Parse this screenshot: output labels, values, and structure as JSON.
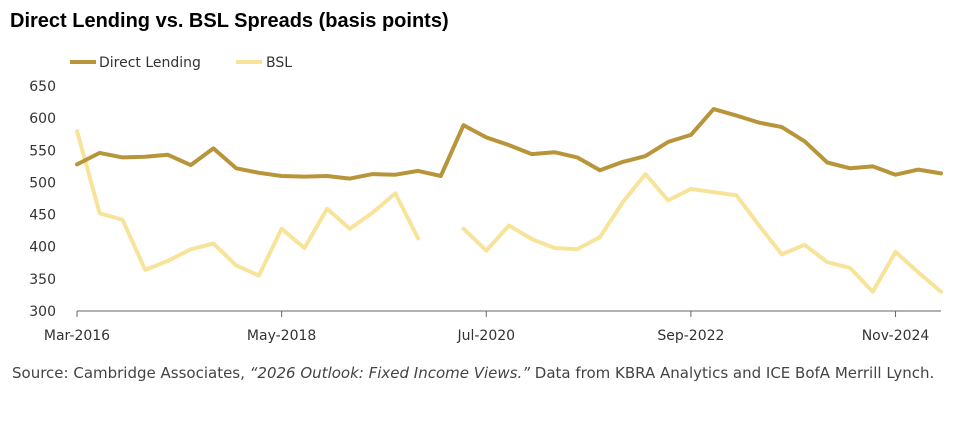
{
  "title": "Direct Lending vs. BSL Spreads (basis points)",
  "source": {
    "prefix": "Source: Cambridge Associates, ",
    "publication": "“2026 Outlook: Fixed Income Views.”",
    "suffix": " Data from KBRA Analytics and ICE BofA Merrill Lynch."
  },
  "colors": {
    "direct_lending": "#B8943A",
    "bsl": "#F7E49A",
    "axis": "#666666"
  },
  "chart_data": {
    "type": "line",
    "title": "Direct Lending vs. BSL Spreads (basis points)",
    "xlabel": "",
    "ylabel": "",
    "ylim": [
      300,
      650
    ],
    "yticks": [
      300,
      350,
      400,
      450,
      500,
      550,
      600,
      650
    ],
    "x_tick_labels": [
      {
        "label": "Mar-2016",
        "index": 0
      },
      {
        "label": "May-2018",
        "index": 9
      },
      {
        "label": "Jul-2020",
        "index": 18
      },
      {
        "label": "Sep-2022",
        "index": 27
      },
      {
        "label": "Nov-2024",
        "index": 36
      }
    ],
    "x": [
      "Mar-2016",
      "Jun-2016",
      "Sep-2016",
      "Dec-2016",
      "Mar-2017",
      "Jun-2017",
      "Sep-2017",
      "Dec-2017",
      "Mar-2018",
      "Jun-2018",
      "Sep-2018",
      "Dec-2018",
      "Mar-2019",
      "Jun-2019",
      "Sep-2019",
      "Dec-2019",
      "Mar-2020",
      "Jun-2020",
      "Sep-2020",
      "Dec-2020",
      "Mar-2021",
      "Jun-2021",
      "Sep-2021",
      "Dec-2021",
      "Mar-2022",
      "Jun-2022",
      "Sep-2022",
      "Dec-2022",
      "Mar-2023",
      "Jun-2023",
      "Sep-2023",
      "Dec-2023",
      "Mar-2024",
      "Jun-2024",
      "Sep-2024",
      "Dec-2024",
      "Mar-2025",
      "Jun-2025",
      "Sep-2025"
    ],
    "grid": false,
    "legend": "top-left",
    "series": [
      {
        "name": "Direct Lending",
        "values": [
          528,
          546,
          539,
          540,
          543,
          527,
          553,
          522,
          515,
          510,
          509,
          510,
          506,
          513,
          512,
          518,
          510,
          589,
          570,
          558,
          544,
          547,
          539,
          519,
          532,
          541,
          563,
          574,
          614,
          604,
          593,
          586,
          564,
          531,
          522,
          525,
          512,
          520,
          514
        ]
      },
      {
        "name": "BSL",
        "values": [
          580,
          452,
          442,
          364,
          378,
          396,
          405,
          371,
          355,
          428,
          398,
          459,
          428,
          453,
          483,
          413,
          null,
          428,
          394,
          433,
          412,
          398,
          396,
          415,
          469,
          513,
          472,
          490,
          485,
          480,
          433,
          388,
          403,
          376,
          367,
          330,
          392,
          360,
          330
        ]
      }
    ]
  }
}
